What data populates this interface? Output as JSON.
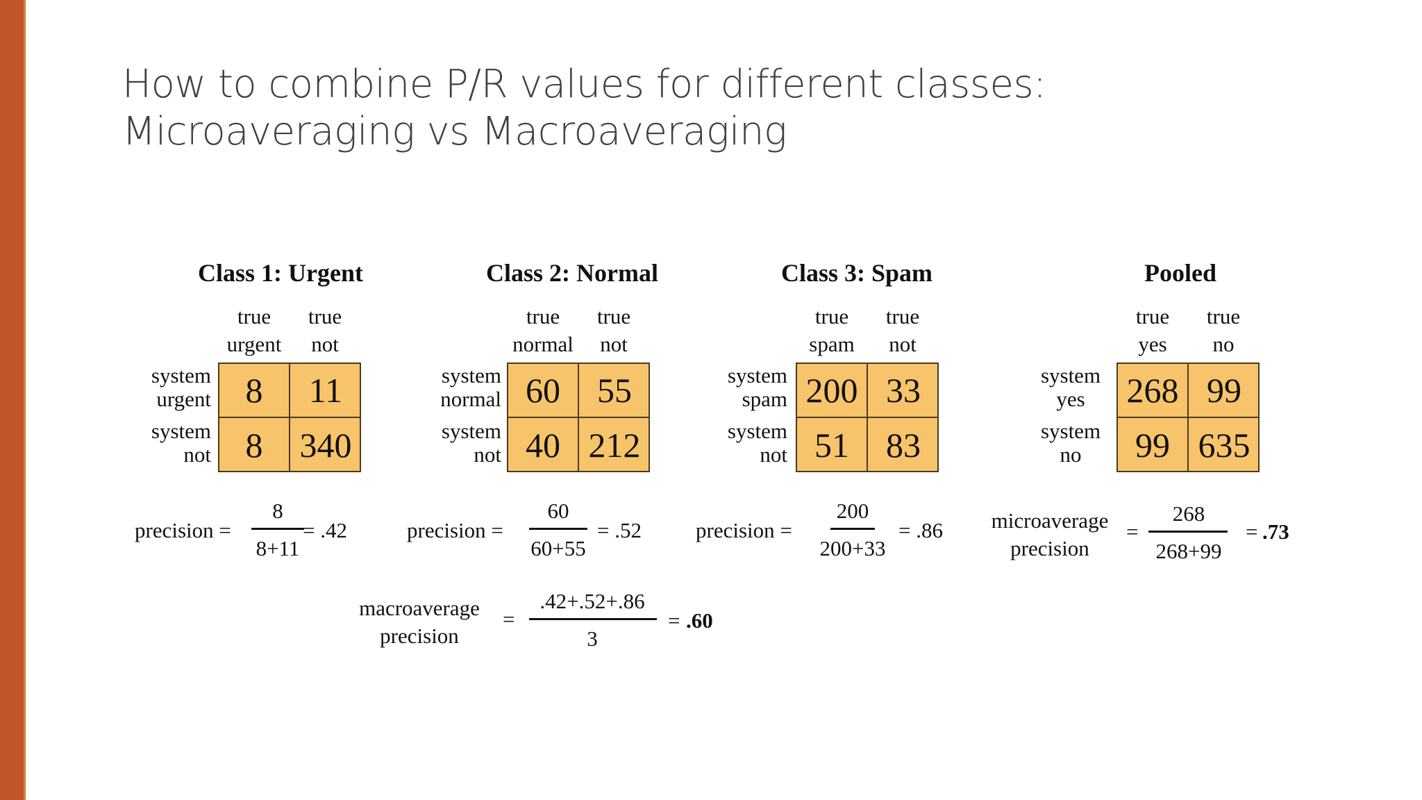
{
  "title": {
    "line1": "How to combine P/R values for different classes:",
    "line2": "Microaveraging vs Macroaveraging"
  },
  "classes": [
    {
      "title": "Class 1: Urgent",
      "col_heads": [
        [
          "true",
          "urgent"
        ],
        [
          "true",
          "not"
        ]
      ],
      "row_heads": [
        [
          "system",
          "urgent"
        ],
        [
          "system",
          "not"
        ]
      ],
      "matrix": [
        [
          "8",
          "11"
        ],
        [
          "8",
          "340"
        ]
      ],
      "formula": {
        "label": "precision =",
        "num": "8",
        "den": "8+11",
        "result": "= .42"
      }
    },
    {
      "title": "Class 2: Normal",
      "col_heads": [
        [
          "true",
          "normal"
        ],
        [
          "true",
          "not"
        ]
      ],
      "row_heads": [
        [
          "system",
          "normal"
        ],
        [
          "system",
          "not"
        ]
      ],
      "matrix": [
        [
          "60",
          "55"
        ],
        [
          "40",
          "212"
        ]
      ],
      "formula": {
        "label": "precision =",
        "num": "60",
        "den": "60+55",
        "result": "= .52"
      }
    },
    {
      "title": "Class 3: Spam",
      "col_heads": [
        [
          "true",
          "spam"
        ],
        [
          "true",
          "not"
        ]
      ],
      "row_heads": [
        [
          "system",
          "spam"
        ],
        [
          "system",
          "not"
        ]
      ],
      "matrix": [
        [
          "200",
          "33"
        ],
        [
          "51",
          "83"
        ]
      ],
      "formula": {
        "label": "precision =",
        "num": "200",
        "den": "200+33",
        "result": "= .86"
      }
    },
    {
      "title": "Pooled",
      "col_heads": [
        [
          "true",
          "yes"
        ],
        [
          "true",
          "no"
        ]
      ],
      "row_heads": [
        [
          "system",
          "yes"
        ],
        [
          "system",
          "no"
        ]
      ],
      "matrix": [
        [
          "268",
          "99"
        ],
        [
          "99",
          "635"
        ]
      ]
    }
  ],
  "micro": {
    "label_line1": "microaverage",
    "label_line2": "precision",
    "eq": "=",
    "num": "268",
    "den": "268+99",
    "result_eq": "=",
    "result": ".73"
  },
  "macro": {
    "label_line1": "macroaverage",
    "label_line2": "precision",
    "eq": "=",
    "num": ".42+.52+.86",
    "den": "3",
    "result_eq": "=",
    "result": ".60"
  },
  "colors": {
    "accent": "#c0562a",
    "cell_fill": "#f7c46b",
    "title_text": "#404040"
  }
}
